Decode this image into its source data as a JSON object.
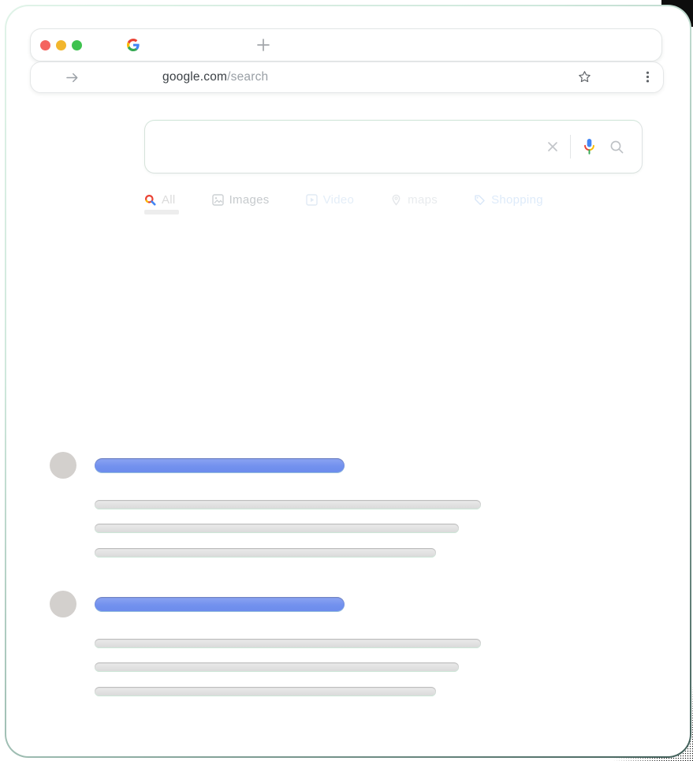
{
  "browser": {
    "traffic_lights": {
      "close": "#f4645f",
      "minimize": "#f2b62d",
      "zoom": "#3ec24f"
    },
    "favicon": "google-g",
    "new_tab_icon": "plus",
    "address": {
      "domain": "google.com",
      "path": "/search"
    },
    "forward_icon": "arrow-right",
    "bookmark_icon": "star-outline",
    "menu_icon": "vertical-dots"
  },
  "search": {
    "value": "",
    "clear_icon": "x",
    "mic_icon": "google-mic",
    "submit_icon": "magnifier"
  },
  "tabs": [
    {
      "label": "All",
      "icon": "colored-magnifier",
      "active": true
    },
    {
      "label": "Images",
      "icon": "photo",
      "active": false
    },
    {
      "label": "Video",
      "icon": "play-square",
      "active": false
    },
    {
      "label": "maps",
      "icon": "map-pin",
      "active": false
    },
    {
      "label": "Shopping",
      "icon": "price-tag",
      "active": false
    }
  ],
  "results": [
    {
      "avatar": true,
      "title_width": 317,
      "line_widths": [
        490,
        462,
        433
      ]
    },
    {
      "avatar": true,
      "title_width": 317,
      "line_widths": [
        490,
        462,
        433
      ]
    }
  ],
  "colors": {
    "skeleton_title": "#7291ee",
    "skeleton_line": "#e1e1e1",
    "skeleton_avatar": "#d3d0cd",
    "page_border_top": "#e0f3e8",
    "page_border_bottom": "#42605a",
    "google_blue": "#4285f4",
    "google_red": "#ea4335",
    "google_yellow": "#fbbc05",
    "google_green": "#34a853"
  }
}
